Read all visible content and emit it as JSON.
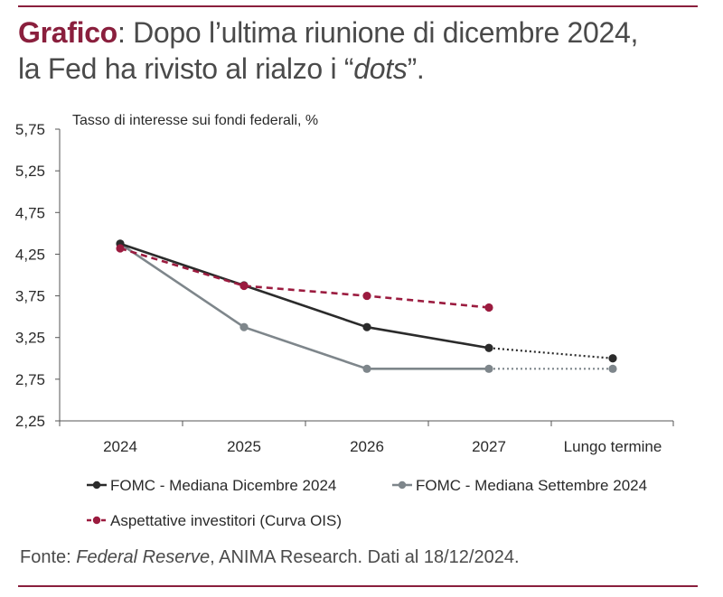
{
  "header": {
    "title_lead": "Grafico",
    "title_line1": ": Dopo l’ultima riunione di dicembre 2024,",
    "title_line2_pre": "la Fed ha rivisto al rialzo i “",
    "title_line2_em": "dots",
    "title_line2_post": "”."
  },
  "colors": {
    "accent": "#8a1f3d",
    "series_dec": "#2b2b2b",
    "series_sep": "#7e868b",
    "series_ois": "#9b1b3f"
  },
  "chart_data": {
    "type": "line",
    "ylabel": "Tasso di interesse sui fondi federali, %",
    "categories": [
      "2024",
      "2025",
      "2026",
      "2027",
      "Lungo termine"
    ],
    "y_ticks": [
      "5,75",
      "5,25",
      "4,75",
      "4,25",
      "3,75",
      "3,25",
      "2,75",
      "2,25"
    ],
    "y_tick_values": [
      5.75,
      5.25,
      4.75,
      4.25,
      3.75,
      3.25,
      2.75,
      2.25
    ],
    "ylim": [
      2.25,
      5.75
    ],
    "grid": false,
    "legend_position": "bottom",
    "series": [
      {
        "name": "FOMC - Mediana Dicembre 2024",
        "values": [
          4.375,
          3.875,
          3.375,
          3.125,
          3.0
        ],
        "style": "solid",
        "dotted_from_index": 3
      },
      {
        "name": "FOMC - Mediana Settembre 2024",
        "values": [
          4.375,
          3.375,
          2.875,
          2.875,
          2.875
        ],
        "style": "solid",
        "dotted_from_index": 3
      },
      {
        "name": "Aspettative investitori (Curva OIS)",
        "values": [
          4.32,
          3.87,
          3.75,
          3.61,
          null
        ],
        "style": "dashed"
      }
    ]
  },
  "footer": {
    "source_pre": "Fonte: ",
    "source_em": "Federal Reserve",
    "source_post": ", ANIMA Research. Dati al 18/12/2024."
  }
}
